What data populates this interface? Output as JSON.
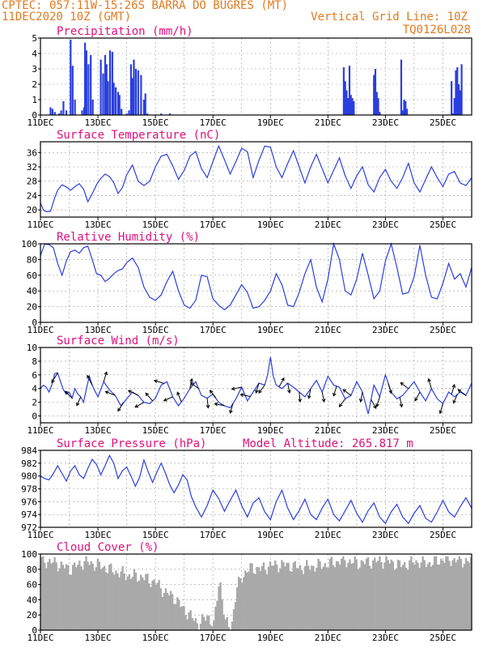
{
  "header": {
    "line1": "CPTEC:   057:11W-15:26S  BARRA DO BUGRES (MT)",
    "line2": "11DEC2020 10Z (GMT)",
    "right1": "Vertical Grid Line: 10Z",
    "right2": "TQ0126L028"
  },
  "colors": {
    "header": "#e07a1f",
    "title": "#e0107a",
    "line": "#2b3fe0",
    "cloud": "#a9a9a9",
    "grid": "#999999"
  },
  "chart_data": [
    {
      "type": "bar",
      "title": "Precipitation (mm/h)",
      "ylim": [
        0,
        5
      ],
      "yticks": [
        0,
        1,
        2,
        3,
        4,
        5
      ],
      "xrange": [
        0,
        15
      ],
      "xtick_pos": [
        0,
        2,
        4,
        6,
        8,
        10,
        12,
        14
      ],
      "xtick_labels": [
        "11DEC",
        "13DEC",
        "15DEC",
        "17DEC",
        "19DEC",
        "21DEC",
        "23DEC",
        "25DEC"
      ],
      "x": [
        0.35,
        0.42,
        0.5,
        0.65,
        0.72,
        0.8,
        0.9,
        1.05,
        1.12,
        1.2,
        1.45,
        1.52,
        1.55,
        1.6,
        1.67,
        1.75,
        1.82,
        2.1,
        2.18,
        2.25,
        2.3,
        2.35,
        2.42,
        2.5,
        2.55,
        2.62,
        2.7,
        2.75,
        2.82,
        3.0,
        3.08,
        3.15,
        3.2,
        3.25,
        3.32,
        3.4,
        3.5,
        3.6,
        3.65,
        3.72,
        4.2,
        4.5,
        10.55,
        10.6,
        10.65,
        10.7,
        10.75,
        10.8,
        10.85,
        10.9,
        11.6,
        11.65,
        11.7,
        11.75,
        11.8,
        12.55,
        12.6,
        12.65,
        12.7,
        12.75,
        14.3,
        14.35,
        14.4,
        14.45,
        14.5,
        14.55,
        14.6,
        14.65
      ],
      "values": [
        0.5,
        0.4,
        0.2,
        0.1,
        0.3,
        0.9,
        0.3,
        4.9,
        3.2,
        1.0,
        0.3,
        0.5,
        4.7,
        4.2,
        3.3,
        3.9,
        1.0,
        3.6,
        2.7,
        3.9,
        3.3,
        2.2,
        4.2,
        4.1,
        2.1,
        1.8,
        1.5,
        1.3,
        0.4,
        0.1,
        0.3,
        3.3,
        2.4,
        3.6,
        3.0,
        2.9,
        2.6,
        1.0,
        1.4,
        0.1,
        0.1,
        0.1,
        3.1,
        2.2,
        1.6,
        1.1,
        3.2,
        1.3,
        1.1,
        0.9,
        2.6,
        3.0,
        1.5,
        1.1,
        0.2,
        3.6,
        0.3,
        1.0,
        0.9,
        0.4,
        2.2,
        0.1,
        1.1,
        2.9,
        3.1,
        2.0,
        1.6,
        3.3
      ]
    },
    {
      "type": "line",
      "title": "Surface Temperature (nC)",
      "ylim": [
        18,
        39
      ],
      "yticks": [
        20,
        24,
        28,
        32,
        36
      ],
      "xrange": [
        0,
        15
      ],
      "xtick_pos": [
        0,
        2,
        4,
        6,
        8,
        10,
        12,
        14
      ],
      "xtick_labels": [
        "11DEC",
        "13DEC",
        "15DEC",
        "17DEC",
        "19DEC",
        "21DEC",
        "23DEC",
        "25DEC"
      ],
      "x": [
        0.0,
        0.1,
        0.2,
        0.35,
        0.5,
        0.6,
        0.75,
        0.9,
        1.05,
        1.2,
        1.35,
        1.5,
        1.65,
        1.8,
        1.95,
        2.1,
        2.25,
        2.4,
        2.55,
        2.7,
        2.85,
        3.0,
        3.2,
        3.4,
        3.6,
        3.8,
        4.0,
        4.2,
        4.4,
        4.6,
        4.8,
        5.0,
        5.2,
        5.4,
        5.6,
        5.8,
        6.0,
        6.2,
        6.4,
        6.6,
        6.8,
        7.0,
        7.2,
        7.4,
        7.6,
        7.8,
        8.0,
        8.2,
        8.4,
        8.6,
        8.8,
        9.0,
        9.2,
        9.4,
        9.6,
        9.8,
        10.0,
        10.2,
        10.4,
        10.6,
        10.8,
        11.0,
        11.2,
        11.4,
        11.6,
        11.8,
        12.0,
        12.2,
        12.4,
        12.6,
        12.8,
        13.0,
        13.2,
        13.4,
        13.6,
        13.8,
        14.0,
        14.2,
        14.4,
        14.6,
        14.8,
        15.0
      ],
      "values": [
        22,
        20,
        19.5,
        19.6,
        23.5,
        25.5,
        27,
        26.4,
        25.5,
        26.5,
        27.3,
        25.8,
        22.3,
        24.5,
        27,
        28.8,
        30,
        29.3,
        27.6,
        24.6,
        26.2,
        29.8,
        32.5,
        28,
        26.8,
        28,
        32,
        35,
        35.5,
        32.3,
        28.5,
        31,
        35,
        36.3,
        31.5,
        29,
        33.5,
        37.8,
        34,
        30,
        33.5,
        37.2,
        36.2,
        29,
        33.8,
        37.8,
        37.5,
        32,
        29,
        33,
        36.5,
        32,
        27.5,
        32,
        35.5,
        31.5,
        27.5,
        31,
        34.5,
        29.5,
        26,
        29.5,
        32,
        27,
        25,
        29,
        31.3,
        28,
        26,
        29,
        33,
        27.5,
        25,
        28.5,
        32,
        29,
        26.5,
        30,
        30.7,
        27.5,
        26.8,
        29
      ]
    },
    {
      "type": "line",
      "title": "Relative Humidity (%)",
      "ylim": [
        0,
        100
      ],
      "yticks": [
        0,
        20,
        40,
        60,
        80,
        100
      ],
      "xrange": [
        0,
        15
      ],
      "xtick_pos": [
        0,
        2,
        4,
        6,
        8,
        10,
        12,
        14
      ],
      "xtick_labels": [
        "11DEC",
        "13DEC",
        "15DEC",
        "17DEC",
        "19DEC",
        "21DEC",
        "23DEC",
        "25DEC"
      ],
      "x": [
        0.0,
        0.15,
        0.3,
        0.45,
        0.6,
        0.75,
        0.9,
        1.05,
        1.2,
        1.35,
        1.5,
        1.65,
        1.8,
        1.95,
        2.1,
        2.25,
        2.4,
        2.55,
        2.7,
        2.85,
        3.0,
        3.2,
        3.4,
        3.6,
        3.8,
        4.0,
        4.2,
        4.4,
        4.6,
        4.8,
        5.0,
        5.2,
        5.4,
        5.6,
        5.8,
        6.0,
        6.2,
        6.4,
        6.6,
        6.8,
        7.0,
        7.2,
        7.4,
        7.6,
        7.8,
        8.0,
        8.2,
        8.4,
        8.6,
        8.8,
        9.0,
        9.2,
        9.4,
        9.6,
        9.8,
        10.0,
        10.2,
        10.4,
        10.6,
        10.8,
        11.0,
        11.2,
        11.4,
        11.6,
        11.8,
        12.0,
        12.2,
        12.4,
        12.6,
        12.8,
        13.0,
        13.2,
        13.4,
        13.6,
        13.8,
        14.0,
        14.2,
        14.4,
        14.6,
        14.8,
        15.0
      ],
      "values": [
        85,
        100,
        99,
        95,
        75,
        60,
        78,
        90,
        92,
        88,
        95,
        97,
        80,
        62,
        60,
        52,
        56,
        62,
        66,
        68,
        76,
        82,
        70,
        45,
        32,
        28,
        35,
        52,
        65,
        40,
        22,
        18,
        28,
        60,
        58,
        30,
        22,
        16,
        22,
        35,
        48,
        38,
        18,
        20,
        28,
        40,
        62,
        48,
        22,
        20,
        38,
        62,
        80,
        45,
        26,
        55,
        100,
        80,
        40,
        35,
        55,
        88,
        60,
        30,
        40,
        78,
        100,
        70,
        36,
        38,
        58,
        98,
        60,
        32,
        30,
        50,
        75,
        55,
        62,
        45,
        70
      ]
    },
    {
      "type": "line",
      "title": "Surface Wind (m/s)",
      "ylim": [
        -1,
        10
      ],
      "yticks": [
        0,
        2,
        4,
        6,
        8,
        10
      ],
      "xrange": [
        0,
        15
      ],
      "xtick_pos": [
        0,
        2,
        4,
        6,
        8,
        10,
        12,
        14
      ],
      "xtick_labels": [
        "11DEC",
        "13DEC",
        "15DEC",
        "17DEC",
        "19DEC",
        "21DEC",
        "23DEC",
        "25DEC"
      ],
      "x": [
        0.0,
        0.1,
        0.2,
        0.3,
        0.4,
        0.5,
        0.6,
        0.7,
        0.8,
        0.9,
        1.0,
        1.1,
        1.2,
        1.3,
        1.4,
        1.5,
        1.6,
        1.7,
        1.8,
        1.9,
        2.0,
        2.2,
        2.4,
        2.6,
        2.8,
        3.0,
        3.2,
        3.4,
        3.6,
        3.8,
        4.0,
        4.2,
        4.4,
        4.6,
        4.8,
        5.0,
        5.2,
        5.4,
        5.6,
        5.8,
        6.0,
        6.2,
        6.4,
        6.6,
        6.8,
        7.0,
        7.2,
        7.4,
        7.6,
        7.8,
        7.9,
        8.0,
        8.1,
        8.2,
        8.4,
        8.6,
        8.8,
        9.0,
        9.2,
        9.4,
        9.6,
        9.8,
        10.0,
        10.2,
        10.4,
        10.6,
        10.8,
        11.0,
        11.2,
        11.4,
        11.6,
        11.8,
        12.0,
        12.2,
        12.4,
        12.6,
        12.8,
        13.0,
        13.2,
        13.4,
        13.6,
        13.8,
        14.0,
        14.2,
        14.4,
        14.6,
        14.8,
        15.0
      ],
      "values": [
        4,
        4.5,
        4.2,
        3.5,
        4.6,
        6.2,
        6.3,
        5.0,
        3.8,
        3.2,
        3.5,
        2.6,
        4.0,
        3.2,
        2.8,
        2.0,
        4.0,
        5.8,
        4.5,
        3.6,
        2.8,
        5.0,
        3.8,
        3.0,
        1.5,
        2.5,
        3.5,
        3.0,
        2.0,
        1.8,
        2.6,
        4.5,
        5.0,
        2.8,
        1.5,
        2.6,
        4.0,
        5.0,
        3.0,
        2.6,
        3.2,
        2.0,
        1.5,
        1.2,
        2.5,
        4.2,
        2.2,
        3.5,
        4.8,
        4.5,
        6.0,
        8.6,
        5.8,
        4.5,
        4.0,
        4.8,
        4.2,
        3.5,
        2.8,
        4.0,
        5.2,
        3.5,
        5.8,
        4.5,
        4.2,
        2.5,
        3.0,
        5.0,
        3.5,
        0.3,
        4.5,
        2.8,
        6.0,
        3.5,
        2.5,
        3.0,
        4.0,
        5.0,
        3.5,
        2.2,
        4.0,
        2.5,
        1.8,
        3.5,
        2.8,
        3.5,
        3.0,
        4.8
      ],
      "arrows": [
        {
          "x": 0.6,
          "u": -0.6,
          "v": -1
        },
        {
          "x": 1.1,
          "u": -0.7,
          "v": 0.7
        },
        {
          "x": 1.4,
          "u": -0.4,
          "v": -0.9
        },
        {
          "x": 1.8,
          "u": -0.5,
          "v": 1
        },
        {
          "x": 2.2,
          "u": 0.3,
          "v": 1
        },
        {
          "x": 2.6,
          "u": -1,
          "v": 0.4
        },
        {
          "x": 2.9,
          "u": -0.6,
          "v": -0.9
        },
        {
          "x": 3.4,
          "u": -1,
          "v": 0.5
        },
        {
          "x": 3.6,
          "u": -0.9,
          "v": -0.5
        },
        {
          "x": 3.9,
          "u": -0.7,
          "v": 0.8
        },
        {
          "x": 4.3,
          "u": -1,
          "v": 0.3
        },
        {
          "x": 4.6,
          "u": -0.9,
          "v": -0.4
        },
        {
          "x": 4.9,
          "u": -0.4,
          "v": 1
        },
        {
          "x": 5.2,
          "u": 0.2,
          "v": 1
        },
        {
          "x": 5.5,
          "u": -0.8,
          "v": 0.6
        },
        {
          "x": 5.8,
          "u": 0.1,
          "v": -1
        },
        {
          "x": 6.1,
          "u": -0.6,
          "v": 0.8
        },
        {
          "x": 6.4,
          "u": -1,
          "v": 0.2
        },
        {
          "x": 6.7,
          "u": -0.3,
          "v": -1
        },
        {
          "x": 7.0,
          "u": -1,
          "v": -0.2
        },
        {
          "x": 7.3,
          "u": -1,
          "v": 0.2
        },
        {
          "x": 7.6,
          "u": -0.3,
          "v": -1
        },
        {
          "x": 7.8,
          "u": -0.6,
          "v": -0.8
        },
        {
          "x": 8.3,
          "u": 0.5,
          "v": 0.9
        },
        {
          "x": 8.6,
          "u": 0.2,
          "v": -1
        },
        {
          "x": 9.0,
          "u": 0.1,
          "v": -1
        },
        {
          "x": 9.4,
          "u": -0.2,
          "v": -1
        },
        {
          "x": 9.8,
          "u": 0.2,
          "v": -1
        },
        {
          "x": 10.3,
          "u": -0.3,
          "v": -1
        },
        {
          "x": 10.6,
          "u": -0.6,
          "v": -0.8
        },
        {
          "x": 10.8,
          "u": -0.8,
          "v": 0.6
        },
        {
          "x": 11.2,
          "u": -0.2,
          "v": -1
        },
        {
          "x": 11.5,
          "u": 0.5,
          "v": -0.9
        },
        {
          "x": 11.8,
          "u": -0.3,
          "v": -1
        },
        {
          "x": 12.1,
          "u": 0.3,
          "v": -1
        },
        {
          "x": 12.5,
          "u": 0.2,
          "v": -1
        },
        {
          "x": 12.8,
          "u": -0.8,
          "v": 0.6
        },
        {
          "x": 13.2,
          "u": -0.5,
          "v": -0.9
        },
        {
          "x": 13.6,
          "u": -0.3,
          "v": 1
        },
        {
          "x": 14.0,
          "u": -0.3,
          "v": -1
        },
        {
          "x": 14.3,
          "u": 0.3,
          "v": 1
        },
        {
          "x": 14.5,
          "u": -0.4,
          "v": -0.9
        },
        {
          "x": 14.8,
          "u": -0.8,
          "v": 0.6
        }
      ]
    },
    {
      "type": "line",
      "title": "Surface Pressure (hPa)",
      "annotation": "Model Altitude: 265.817 m",
      "ylim": [
        972,
        984
      ],
      "yticks": [
        972,
        974,
        976,
        978,
        980,
        982,
        984
      ],
      "xrange": [
        0,
        15
      ],
      "xtick_pos": [
        0,
        2,
        4,
        6,
        8,
        10,
        12,
        14
      ],
      "xtick_labels": [
        "11DEC",
        "13DEC",
        "15DEC",
        "17DEC",
        "19DEC",
        "21DEC",
        "23DEC",
        "25DEC"
      ],
      "x": [
        0.0,
        0.15,
        0.3,
        0.45,
        0.6,
        0.75,
        0.9,
        1.05,
        1.2,
        1.35,
        1.5,
        1.65,
        1.8,
        1.95,
        2.1,
        2.25,
        2.4,
        2.55,
        2.7,
        2.85,
        3.0,
        3.15,
        3.3,
        3.45,
        3.6,
        3.75,
        3.9,
        4.05,
        4.2,
        4.35,
        4.5,
        4.65,
        4.8,
        4.95,
        5.1,
        5.25,
        5.4,
        5.6,
        5.8,
        6.0,
        6.2,
        6.4,
        6.6,
        6.8,
        7.0,
        7.2,
        7.4,
        7.6,
        7.8,
        8.0,
        8.2,
        8.4,
        8.6,
        8.8,
        9.0,
        9.2,
        9.4,
        9.6,
        9.8,
        10.0,
        10.2,
        10.4,
        10.6,
        10.8,
        11.0,
        11.2,
        11.4,
        11.6,
        11.8,
        12.0,
        12.2,
        12.4,
        12.6,
        12.8,
        13.0,
        13.2,
        13.4,
        13.6,
        13.8,
        14.0,
        14.2,
        14.4,
        14.6,
        14.8,
        15.0
      ],
      "values": [
        980,
        979.6,
        979.4,
        980.4,
        981.6,
        980.4,
        979.2,
        980.8,
        981.6,
        980.2,
        979.6,
        981.2,
        982.6,
        981.8,
        980.2,
        981.6,
        983.2,
        982,
        979.6,
        980.8,
        981.4,
        980,
        978.4,
        979.8,
        982.5,
        980.6,
        979,
        980.6,
        982,
        980.4,
        978.6,
        977.4,
        978.6,
        980.2,
        979.4,
        976.8,
        975.2,
        973.6,
        975.4,
        977.8,
        976.5,
        974.5,
        976.2,
        977.8,
        975.4,
        973.6,
        975.8,
        976.6,
        974.4,
        973.2,
        976,
        977.8,
        975,
        973.2,
        974.6,
        976.4,
        974,
        973.2,
        975,
        976.4,
        974,
        973,
        974.6,
        976.2,
        974.2,
        972.8,
        974.6,
        975.8,
        973.6,
        972.6,
        974.4,
        975.6,
        973.6,
        972.6,
        974.2,
        975.4,
        973.4,
        972.8,
        974.4,
        976.2,
        974.4,
        973.6,
        975.2,
        976.6,
        975
      ]
    },
    {
      "type": "bar",
      "title": "Cloud Cover (%)",
      "ylim": [
        0,
        100
      ],
      "yticks": [
        0,
        20,
        40,
        60,
        80,
        100
      ],
      "xrange": [
        0,
        15
      ],
      "xtick_pos": [
        0,
        2,
        4,
        6,
        8,
        10,
        12,
        14
      ],
      "xtick_labels": [
        "11DEC",
        "13DEC",
        "15DEC",
        "17DEC",
        "19DEC",
        "21DEC",
        "23DEC",
        "25DEC"
      ],
      "cloud_curve_x": [
        0,
        0.5,
        1,
        1.5,
        2,
        2.5,
        3,
        3.5,
        4,
        4.3,
        4.6,
        4.9,
        5.2,
        5.5,
        5.8,
        6.0,
        6.2,
        6.4,
        6.6,
        6.8,
        7.0,
        7.3,
        7.6,
        8.0,
        8.5,
        9.0,
        9.5,
        10,
        10.5,
        11,
        11.5,
        12,
        12.5,
        13,
        13.5,
        14,
        14.5,
        15
      ],
      "cloud_curve_y": [
        92,
        88,
        80,
        90,
        85,
        78,
        72,
        70,
        62,
        50,
        44,
        30,
        18,
        8,
        20,
        5,
        70,
        10,
        2,
        55,
        72,
        82,
        80,
        85,
        86,
        82,
        84,
        87,
        92,
        88,
        90,
        91,
        85,
        90,
        88,
        93,
        92,
        90
      ]
    }
  ]
}
